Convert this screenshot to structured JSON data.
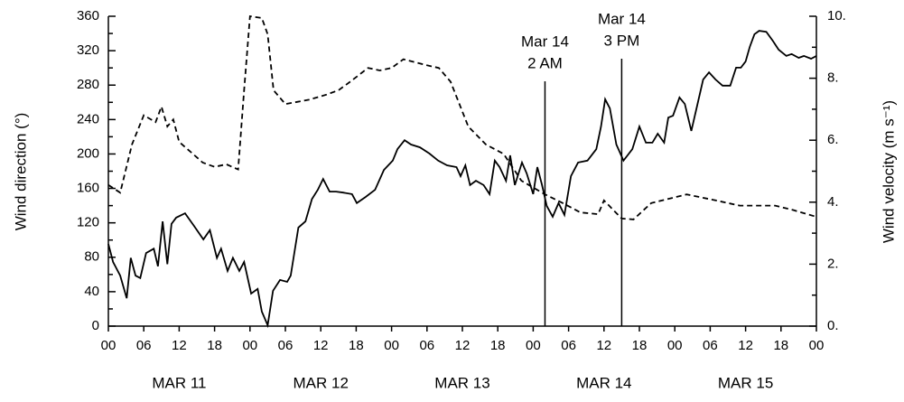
{
  "chart_data": {
    "type": "line",
    "ylabel": "Wind direction  (°)",
    "y2label": "Wind velocity (m s⁻¹)",
    "xlim": [
      0,
      120
    ],
    "xticks": [
      {
        "value": 0,
        "label": "00"
      },
      {
        "value": 6,
        "label": "06"
      },
      {
        "value": 12,
        "label": "12"
      },
      {
        "value": 18,
        "label": "18"
      },
      {
        "value": 24,
        "label": "00"
      },
      {
        "value": 30,
        "label": "06"
      },
      {
        "value": 36,
        "label": "12"
      },
      {
        "value": 42,
        "label": "18"
      },
      {
        "value": 48,
        "label": "00"
      },
      {
        "value": 54,
        "label": "06"
      },
      {
        "value": 60,
        "label": "12"
      },
      {
        "value": 66,
        "label": "18"
      },
      {
        "value": 72,
        "label": "00"
      },
      {
        "value": 78,
        "label": "06"
      },
      {
        "value": 84,
        "label": "12"
      },
      {
        "value": 90,
        "label": "18"
      },
      {
        "value": 96,
        "label": "00"
      },
      {
        "value": 102,
        "label": "06"
      },
      {
        "value": 108,
        "label": "12"
      },
      {
        "value": 114,
        "label": "18"
      },
      {
        "value": 120,
        "label": "00"
      }
    ],
    "day_labels": [
      {
        "value": 12,
        "label": "MAR 11"
      },
      {
        "value": 36,
        "label": "MAR 12"
      },
      {
        "value": 60,
        "label": "MAR 13"
      },
      {
        "value": 84,
        "label": "MAR 14"
      },
      {
        "value": 108,
        "label": "MAR 15"
      }
    ],
    "ylim": [
      0,
      360
    ],
    "yticks": [
      0,
      40,
      80,
      120,
      160,
      200,
      240,
      280,
      320,
      360
    ],
    "yminor_ticks": [
      20,
      60,
      100,
      140,
      180,
      220,
      260,
      300,
      340
    ],
    "y2lim": [
      0,
      10
    ],
    "y2ticks": [
      {
        "value": 0,
        "label": "0."
      },
      {
        "value": 2,
        "label": "2."
      },
      {
        "value": 4,
        "label": "4."
      },
      {
        "value": 6,
        "label": "6."
      },
      {
        "value": 8,
        "label": "8."
      },
      {
        "value": 10,
        "label": "10."
      }
    ],
    "y2minor_ticks": [
      1,
      3,
      5,
      7,
      9
    ],
    "annotations": [
      {
        "x": 74,
        "lines": [
          "Mar 14",
          "2 AM"
        ]
      },
      {
        "x": 87,
        "lines": [
          "Mar 14",
          "3 PM"
        ]
      }
    ],
    "series": [
      {
        "color": "#000000",
        "dashed": true,
        "x": [
          0,
          2,
          4,
          6,
          8,
          9,
          10,
          11,
          12,
          14,
          16,
          18,
          20,
          22,
          23,
          24,
          26,
          27,
          28,
          30,
          34,
          37,
          39,
          41,
          44,
          46,
          48,
          50,
          54,
          56,
          58,
          61,
          64,
          67,
          70,
          74,
          77,
          80,
          83,
          84,
          87,
          89,
          92,
          98,
          103,
          107,
          113,
          116,
          120
        ],
        "values": [
          164,
          155,
          211,
          245,
          237,
          255,
          232,
          240,
          214,
          202,
          190,
          185,
          188,
          182,
          274,
          360,
          358,
          339,
          274,
          258,
          263,
          269,
          274,
          284,
          300,
          297,
          300,
          310,
          303,
          300,
          284,
          232,
          211,
          200,
          169,
          153,
          143,
          132,
          130,
          146,
          125,
          124,
          143,
          153,
          146,
          140,
          140,
          135,
          127
        ]
      },
      {
        "color": "#000000",
        "dashed": false,
        "axis": "y2",
        "x": [
          0,
          0.8,
          2.0,
          3.1,
          3.8,
          4.6,
          5.4,
          6.4,
          7.7,
          8.4,
          9.2,
          10.0,
          10.7,
          11.5,
          13.0,
          14.5,
          16.1,
          17.2,
          18.4,
          19.1,
          20.2,
          21.1,
          22.2,
          23.0,
          24.2,
          25.3,
          26.0,
          27.0,
          27.9,
          29.1,
          30.3,
          30.9,
          32.2,
          33.4,
          34.5,
          35.5,
          36.4,
          37.5,
          38.6,
          39.8,
          41.3,
          42.1,
          43.6,
          45.2,
          46.7,
          48.2,
          49.0,
          50.2,
          51.3,
          52.8,
          54.4,
          55.9,
          57.4,
          59.0,
          59.7,
          60.5,
          61.3,
          62.3,
          63.6,
          64.6,
          65.5,
          66.3,
          67.4,
          68.1,
          68.9,
          70.1,
          70.9,
          72.0,
          72.7,
          73.5,
          74.3,
          75.3,
          76.3,
          77.3,
          78.4,
          79.6,
          81.2,
          82.7,
          83.5,
          84.2,
          85.0,
          86.1,
          87.3,
          88.8,
          90.0,
          91.1,
          92.2,
          93.1,
          94.2,
          94.9,
          95.7,
          96.8,
          97.7,
          98.8,
          99.5,
          100.8,
          101.8,
          102.9,
          104.1,
          105.4,
          106.4,
          107.2,
          108.0,
          108.7,
          109.5,
          110.3,
          111.5,
          112.6,
          113.6,
          114.9,
          115.8,
          117.0,
          117.9,
          119.1,
          120.0
        ],
        "values": [
          2.65,
          2.07,
          1.63,
          0.9,
          2.2,
          1.63,
          1.55,
          2.36,
          2.5,
          1.93,
          3.38,
          2.0,
          3.3,
          3.5,
          3.64,
          3.24,
          2.8,
          3.1,
          2.2,
          2.5,
          1.78,
          2.2,
          1.78,
          2.07,
          1.05,
          1.2,
          0.47,
          0.03,
          1.14,
          1.49,
          1.43,
          1.63,
          3.18,
          3.38,
          4.1,
          4.4,
          4.75,
          4.34,
          4.34,
          4.31,
          4.26,
          3.97,
          4.17,
          4.4,
          5.04,
          5.34,
          5.71,
          6.0,
          5.86,
          5.77,
          5.57,
          5.34,
          5.19,
          5.13,
          4.84,
          5.19,
          4.55,
          4.69,
          4.55,
          4.26,
          5.34,
          5.13,
          4.69,
          5.51,
          4.55,
          5.28,
          4.93,
          4.26,
          5.13,
          4.55,
          3.88,
          3.53,
          3.97,
          3.59,
          4.84,
          5.28,
          5.34,
          5.71,
          6.44,
          7.32,
          7.03,
          5.86,
          5.34,
          5.71,
          6.44,
          5.92,
          5.92,
          6.21,
          5.92,
          6.73,
          6.79,
          7.38,
          7.17,
          6.3,
          6.88,
          7.96,
          8.19,
          7.96,
          7.76,
          7.76,
          8.34,
          8.34,
          8.54,
          9.01,
          9.42,
          9.53,
          9.5,
          9.21,
          8.92,
          8.72,
          8.78,
          8.66,
          8.72,
          8.63,
          8.72
        ]
      }
    ]
  }
}
